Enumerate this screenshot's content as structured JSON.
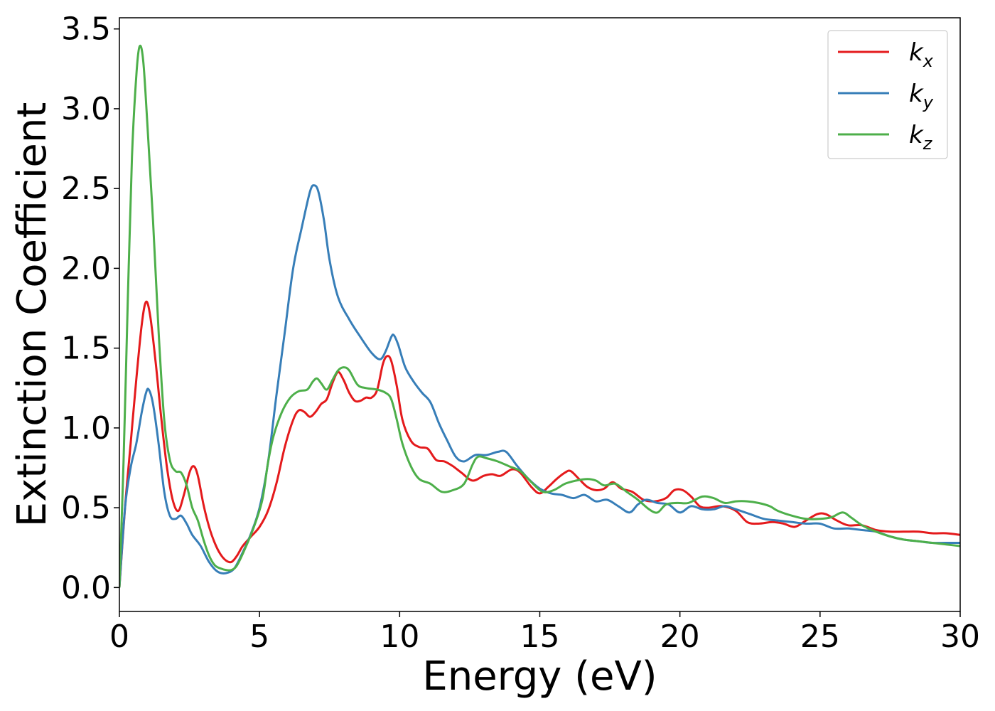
{
  "chart_data": {
    "type": "line",
    "title": "",
    "xlabel": "Energy (eV)",
    "ylabel": "Extinction Coefficient",
    "xlim": [
      0,
      30
    ],
    "ylim": [
      -0.15,
      3.57
    ],
    "xticks": [
      0,
      5,
      10,
      15,
      20,
      25,
      30
    ],
    "xtick_labels": [
      "0",
      "5",
      "10",
      "15",
      "20",
      "25",
      "30"
    ],
    "yticks": [
      0.0,
      0.5,
      1.0,
      1.5,
      2.0,
      2.5,
      3.0,
      3.5
    ],
    "ytick_labels": [
      "0.0",
      "0.5",
      "1.0",
      "1.5",
      "2.0",
      "2.5",
      "3.0",
      "3.5"
    ],
    "grid": false,
    "legend_position": "top-right",
    "series": [
      {
        "name": "k",
        "subscript": "x",
        "color": "#e41a1c",
        "points": [
          [
            0,
            0
          ],
          [
            0.2,
            0.5
          ],
          [
            0.4,
            0.9
          ],
          [
            0.6,
            1.3
          ],
          [
            0.8,
            1.65
          ],
          [
            0.95,
            1.79
          ],
          [
            1.1,
            1.7
          ],
          [
            1.3,
            1.4
          ],
          [
            1.5,
            1.05
          ],
          [
            1.7,
            0.75
          ],
          [
            1.9,
            0.55
          ],
          [
            2.1,
            0.48
          ],
          [
            2.3,
            0.58
          ],
          [
            2.5,
            0.72
          ],
          [
            2.65,
            0.76
          ],
          [
            2.8,
            0.7
          ],
          [
            3.0,
            0.52
          ],
          [
            3.2,
            0.38
          ],
          [
            3.4,
            0.28
          ],
          [
            3.6,
            0.21
          ],
          [
            3.8,
            0.17
          ],
          [
            4.0,
            0.16
          ],
          [
            4.2,
            0.2
          ],
          [
            4.4,
            0.26
          ],
          [
            4.7,
            0.32
          ],
          [
            5.0,
            0.38
          ],
          [
            5.3,
            0.48
          ],
          [
            5.6,
            0.65
          ],
          [
            5.9,
            0.88
          ],
          [
            6.2,
            1.05
          ],
          [
            6.4,
            1.11
          ],
          [
            6.6,
            1.1
          ],
          [
            6.8,
            1.07
          ],
          [
            7.0,
            1.1
          ],
          [
            7.2,
            1.15
          ],
          [
            7.4,
            1.18
          ],
          [
            7.6,
            1.28
          ],
          [
            7.8,
            1.35
          ],
          [
            8.0,
            1.3
          ],
          [
            8.2,
            1.22
          ],
          [
            8.4,
            1.17
          ],
          [
            8.6,
            1.17
          ],
          [
            8.8,
            1.19
          ],
          [
            9.0,
            1.19
          ],
          [
            9.2,
            1.24
          ],
          [
            9.4,
            1.4
          ],
          [
            9.55,
            1.45
          ],
          [
            9.7,
            1.42
          ],
          [
            9.9,
            1.26
          ],
          [
            10.1,
            1.05
          ],
          [
            10.4,
            0.92
          ],
          [
            10.7,
            0.88
          ],
          [
            11.0,
            0.87
          ],
          [
            11.3,
            0.8
          ],
          [
            11.6,
            0.79
          ],
          [
            11.9,
            0.76
          ],
          [
            12.2,
            0.72
          ],
          [
            12.6,
            0.67
          ],
          [
            13.0,
            0.7
          ],
          [
            13.3,
            0.71
          ],
          [
            13.6,
            0.7
          ],
          [
            14.0,
            0.74
          ],
          [
            14.3,
            0.72
          ],
          [
            14.7,
            0.63
          ],
          [
            15.0,
            0.59
          ],
          [
            15.3,
            0.63
          ],
          [
            15.6,
            0.68
          ],
          [
            15.9,
            0.72
          ],
          [
            16.1,
            0.73
          ],
          [
            16.4,
            0.68
          ],
          [
            16.7,
            0.63
          ],
          [
            17.0,
            0.61
          ],
          [
            17.3,
            0.62
          ],
          [
            17.6,
            0.66
          ],
          [
            17.9,
            0.62
          ],
          [
            18.3,
            0.6
          ],
          [
            18.7,
            0.55
          ],
          [
            19.1,
            0.54
          ],
          [
            19.5,
            0.56
          ],
          [
            19.8,
            0.61
          ],
          [
            20.1,
            0.61
          ],
          [
            20.4,
            0.57
          ],
          [
            20.7,
            0.51
          ],
          [
            21.0,
            0.5
          ],
          [
            21.5,
            0.51
          ],
          [
            22.0,
            0.48
          ],
          [
            22.4,
            0.41
          ],
          [
            22.8,
            0.4
          ],
          [
            23.3,
            0.41
          ],
          [
            23.7,
            0.4
          ],
          [
            24.1,
            0.38
          ],
          [
            24.5,
            0.42
          ],
          [
            24.9,
            0.46
          ],
          [
            25.2,
            0.46
          ],
          [
            25.6,
            0.42
          ],
          [
            26.0,
            0.39
          ],
          [
            26.5,
            0.39
          ],
          [
            27.0,
            0.36
          ],
          [
            27.5,
            0.35
          ],
          [
            28.0,
            0.35
          ],
          [
            28.5,
            0.35
          ],
          [
            29.0,
            0.34
          ],
          [
            29.5,
            0.34
          ],
          [
            30.0,
            0.33
          ]
        ]
      },
      {
        "name": "k",
        "subscript": "y",
        "color": "#377eb8",
        "points": [
          [
            0,
            0
          ],
          [
            0.2,
            0.5
          ],
          [
            0.4,
            0.75
          ],
          [
            0.6,
            0.9
          ],
          [
            0.8,
            1.1
          ],
          [
            0.95,
            1.22
          ],
          [
            1.05,
            1.24
          ],
          [
            1.2,
            1.15
          ],
          [
            1.4,
            0.9
          ],
          [
            1.6,
            0.6
          ],
          [
            1.8,
            0.45
          ],
          [
            2.0,
            0.43
          ],
          [
            2.2,
            0.45
          ],
          [
            2.4,
            0.4
          ],
          [
            2.6,
            0.33
          ],
          [
            2.9,
            0.26
          ],
          [
            3.2,
            0.16
          ],
          [
            3.5,
            0.1
          ],
          [
            3.8,
            0.09
          ],
          [
            4.1,
            0.12
          ],
          [
            4.4,
            0.22
          ],
          [
            4.7,
            0.34
          ],
          [
            5.0,
            0.5
          ],
          [
            5.3,
            0.78
          ],
          [
            5.6,
            1.2
          ],
          [
            5.9,
            1.6
          ],
          [
            6.2,
            2.0
          ],
          [
            6.5,
            2.25
          ],
          [
            6.8,
            2.48
          ],
          [
            6.95,
            2.52
          ],
          [
            7.1,
            2.48
          ],
          [
            7.3,
            2.3
          ],
          [
            7.5,
            2.05
          ],
          [
            7.8,
            1.82
          ],
          [
            8.2,
            1.68
          ],
          [
            8.6,
            1.57
          ],
          [
            9.0,
            1.47
          ],
          [
            9.3,
            1.43
          ],
          [
            9.5,
            1.48
          ],
          [
            9.7,
            1.57
          ],
          [
            9.8,
            1.58
          ],
          [
            9.95,
            1.52
          ],
          [
            10.2,
            1.38
          ],
          [
            10.5,
            1.29
          ],
          [
            10.8,
            1.22
          ],
          [
            11.1,
            1.16
          ],
          [
            11.4,
            1.03
          ],
          [
            11.7,
            0.92
          ],
          [
            12.0,
            0.82
          ],
          [
            12.3,
            0.79
          ],
          [
            12.7,
            0.83
          ],
          [
            13.1,
            0.83
          ],
          [
            13.5,
            0.85
          ],
          [
            13.8,
            0.85
          ],
          [
            14.2,
            0.76
          ],
          [
            14.6,
            0.68
          ],
          [
            15.0,
            0.62
          ],
          [
            15.4,
            0.59
          ],
          [
            15.8,
            0.58
          ],
          [
            16.2,
            0.56
          ],
          [
            16.6,
            0.58
          ],
          [
            17.0,
            0.54
          ],
          [
            17.4,
            0.55
          ],
          [
            17.8,
            0.51
          ],
          [
            18.2,
            0.47
          ],
          [
            18.5,
            0.52
          ],
          [
            18.8,
            0.55
          ],
          [
            19.2,
            0.53
          ],
          [
            19.6,
            0.52
          ],
          [
            20.0,
            0.47
          ],
          [
            20.4,
            0.51
          ],
          [
            20.8,
            0.49
          ],
          [
            21.2,
            0.49
          ],
          [
            21.6,
            0.51
          ],
          [
            22.0,
            0.49
          ],
          [
            22.5,
            0.46
          ],
          [
            23.0,
            0.43
          ],
          [
            23.5,
            0.42
          ],
          [
            24.0,
            0.41
          ],
          [
            24.5,
            0.4
          ],
          [
            25.0,
            0.4
          ],
          [
            25.5,
            0.37
          ],
          [
            26.0,
            0.37
          ],
          [
            26.5,
            0.36
          ],
          [
            27.0,
            0.35
          ],
          [
            27.5,
            0.32
          ],
          [
            28.0,
            0.3
          ],
          [
            28.5,
            0.29
          ],
          [
            29.0,
            0.28
          ],
          [
            29.5,
            0.28
          ],
          [
            30.0,
            0.28
          ]
        ]
      },
      {
        "name": "k",
        "subscript": "z",
        "color": "#4daf4a",
        "points": [
          [
            0,
            0
          ],
          [
            0.15,
            0.8
          ],
          [
            0.3,
            1.8
          ],
          [
            0.45,
            2.7
          ],
          [
            0.6,
            3.2
          ],
          [
            0.72,
            3.39
          ],
          [
            0.85,
            3.3
          ],
          [
            1.0,
            2.9
          ],
          [
            1.2,
            2.3
          ],
          [
            1.4,
            1.6
          ],
          [
            1.6,
            1.05
          ],
          [
            1.8,
            0.8
          ],
          [
            2.0,
            0.73
          ],
          [
            2.2,
            0.72
          ],
          [
            2.4,
            0.64
          ],
          [
            2.6,
            0.5
          ],
          [
            2.8,
            0.42
          ],
          [
            3.0,
            0.3
          ],
          [
            3.2,
            0.2
          ],
          [
            3.4,
            0.14
          ],
          [
            3.6,
            0.12
          ],
          [
            3.8,
            0.11
          ],
          [
            4.0,
            0.11
          ],
          [
            4.2,
            0.14
          ],
          [
            4.5,
            0.25
          ],
          [
            4.8,
            0.38
          ],
          [
            5.1,
            0.55
          ],
          [
            5.3,
            0.78
          ],
          [
            5.5,
            0.95
          ],
          [
            5.8,
            1.1
          ],
          [
            6.1,
            1.19
          ],
          [
            6.4,
            1.23
          ],
          [
            6.7,
            1.24
          ],
          [
            6.9,
            1.29
          ],
          [
            7.05,
            1.31
          ],
          [
            7.2,
            1.28
          ],
          [
            7.4,
            1.24
          ],
          [
            7.6,
            1.3
          ],
          [
            7.8,
            1.36
          ],
          [
            8.0,
            1.38
          ],
          [
            8.2,
            1.36
          ],
          [
            8.5,
            1.27
          ],
          [
            8.8,
            1.25
          ],
          [
            9.2,
            1.24
          ],
          [
            9.5,
            1.22
          ],
          [
            9.7,
            1.18
          ],
          [
            9.9,
            1.05
          ],
          [
            10.1,
            0.9
          ],
          [
            10.4,
            0.76
          ],
          [
            10.7,
            0.68
          ],
          [
            11.1,
            0.65
          ],
          [
            11.5,
            0.6
          ],
          [
            11.9,
            0.61
          ],
          [
            12.3,
            0.65
          ],
          [
            12.6,
            0.77
          ],
          [
            12.8,
            0.82
          ],
          [
            13.1,
            0.81
          ],
          [
            13.5,
            0.79
          ],
          [
            13.9,
            0.76
          ],
          [
            14.3,
            0.73
          ],
          [
            14.7,
            0.66
          ],
          [
            15.1,
            0.6
          ],
          [
            15.5,
            0.61
          ],
          [
            15.9,
            0.65
          ],
          [
            16.3,
            0.67
          ],
          [
            16.7,
            0.68
          ],
          [
            17.0,
            0.67
          ],
          [
            17.3,
            0.64
          ],
          [
            17.7,
            0.65
          ],
          [
            18.1,
            0.6
          ],
          [
            18.5,
            0.55
          ],
          [
            18.9,
            0.49
          ],
          [
            19.2,
            0.47
          ],
          [
            19.5,
            0.52
          ],
          [
            19.9,
            0.53
          ],
          [
            20.3,
            0.53
          ],
          [
            20.8,
            0.57
          ],
          [
            21.2,
            0.56
          ],
          [
            21.6,
            0.53
          ],
          [
            22.0,
            0.54
          ],
          [
            22.4,
            0.54
          ],
          [
            22.8,
            0.53
          ],
          [
            23.2,
            0.51
          ],
          [
            23.5,
            0.48
          ],
          [
            24.0,
            0.45
          ],
          [
            24.5,
            0.43
          ],
          [
            25.0,
            0.43
          ],
          [
            25.4,
            0.44
          ],
          [
            25.8,
            0.47
          ],
          [
            26.1,
            0.44
          ],
          [
            26.5,
            0.39
          ],
          [
            27.0,
            0.35
          ],
          [
            27.5,
            0.32
          ],
          [
            28.0,
            0.3
          ],
          [
            28.5,
            0.29
          ],
          [
            29.0,
            0.28
          ],
          [
            29.5,
            0.27
          ],
          [
            30.0,
            0.26
          ]
        ]
      }
    ]
  }
}
